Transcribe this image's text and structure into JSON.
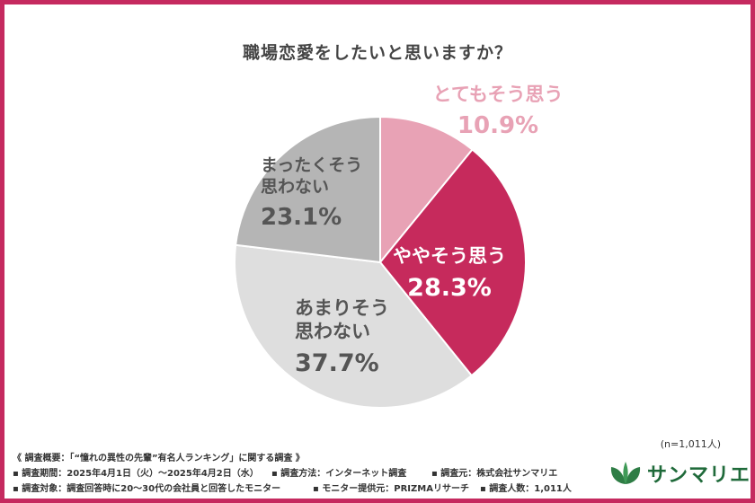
{
  "chart_data": {
    "type": "pie",
    "title": "職場恋愛をしたいと思いますか？",
    "slices": [
      {
        "label_lines": [
          "とてもそう思う"
        ],
        "value": 10.9,
        "value_label": "10.9%",
        "color": "#e8a2b5",
        "text_color": "#e8a2b5"
      },
      {
        "label_lines": [
          "ややそう思う"
        ],
        "value": 28.3,
        "value_label": "28.3%",
        "color": "#c62a5c",
        "text_color": "#ffffff"
      },
      {
        "label_lines": [
          "あまりそう",
          "思わない"
        ],
        "value": 37.7,
        "value_label": "37.7%",
        "color": "#dedede",
        "text_color": "#555555"
      },
      {
        "label_lines": [
          "まったくそう",
          "思わない"
        ],
        "value": 23.1,
        "value_label": "23.1%",
        "color": "#b5b5b5",
        "text_color": "#555555"
      }
    ]
  },
  "sample_note": "(n=1,011人)",
  "notes": {
    "heading": "《 調査概要：「“憧れの異性の先輩”有名人ランキング」に関する調査 》",
    "row1": [
      "▪ 調査期間：2025年4月1日（火）〜2025年4月2日（水）",
      "▪ 調査方法：インターネット調査",
      "▪ 調査元：株式会社サンマリエ"
    ],
    "row2": [
      "▪ 調査対象：調査回答時に20〜30代の会社員と回答したモニター",
      "▪ モニター提供元：PRIZMAリサーチ",
      "▪ 調査人数：1,011人"
    ]
  },
  "logo": {
    "text": "サンマリエ",
    "icon": "leaf-logo-icon",
    "color": "#1f6a3a"
  },
  "frame_color": "#c52a5f"
}
